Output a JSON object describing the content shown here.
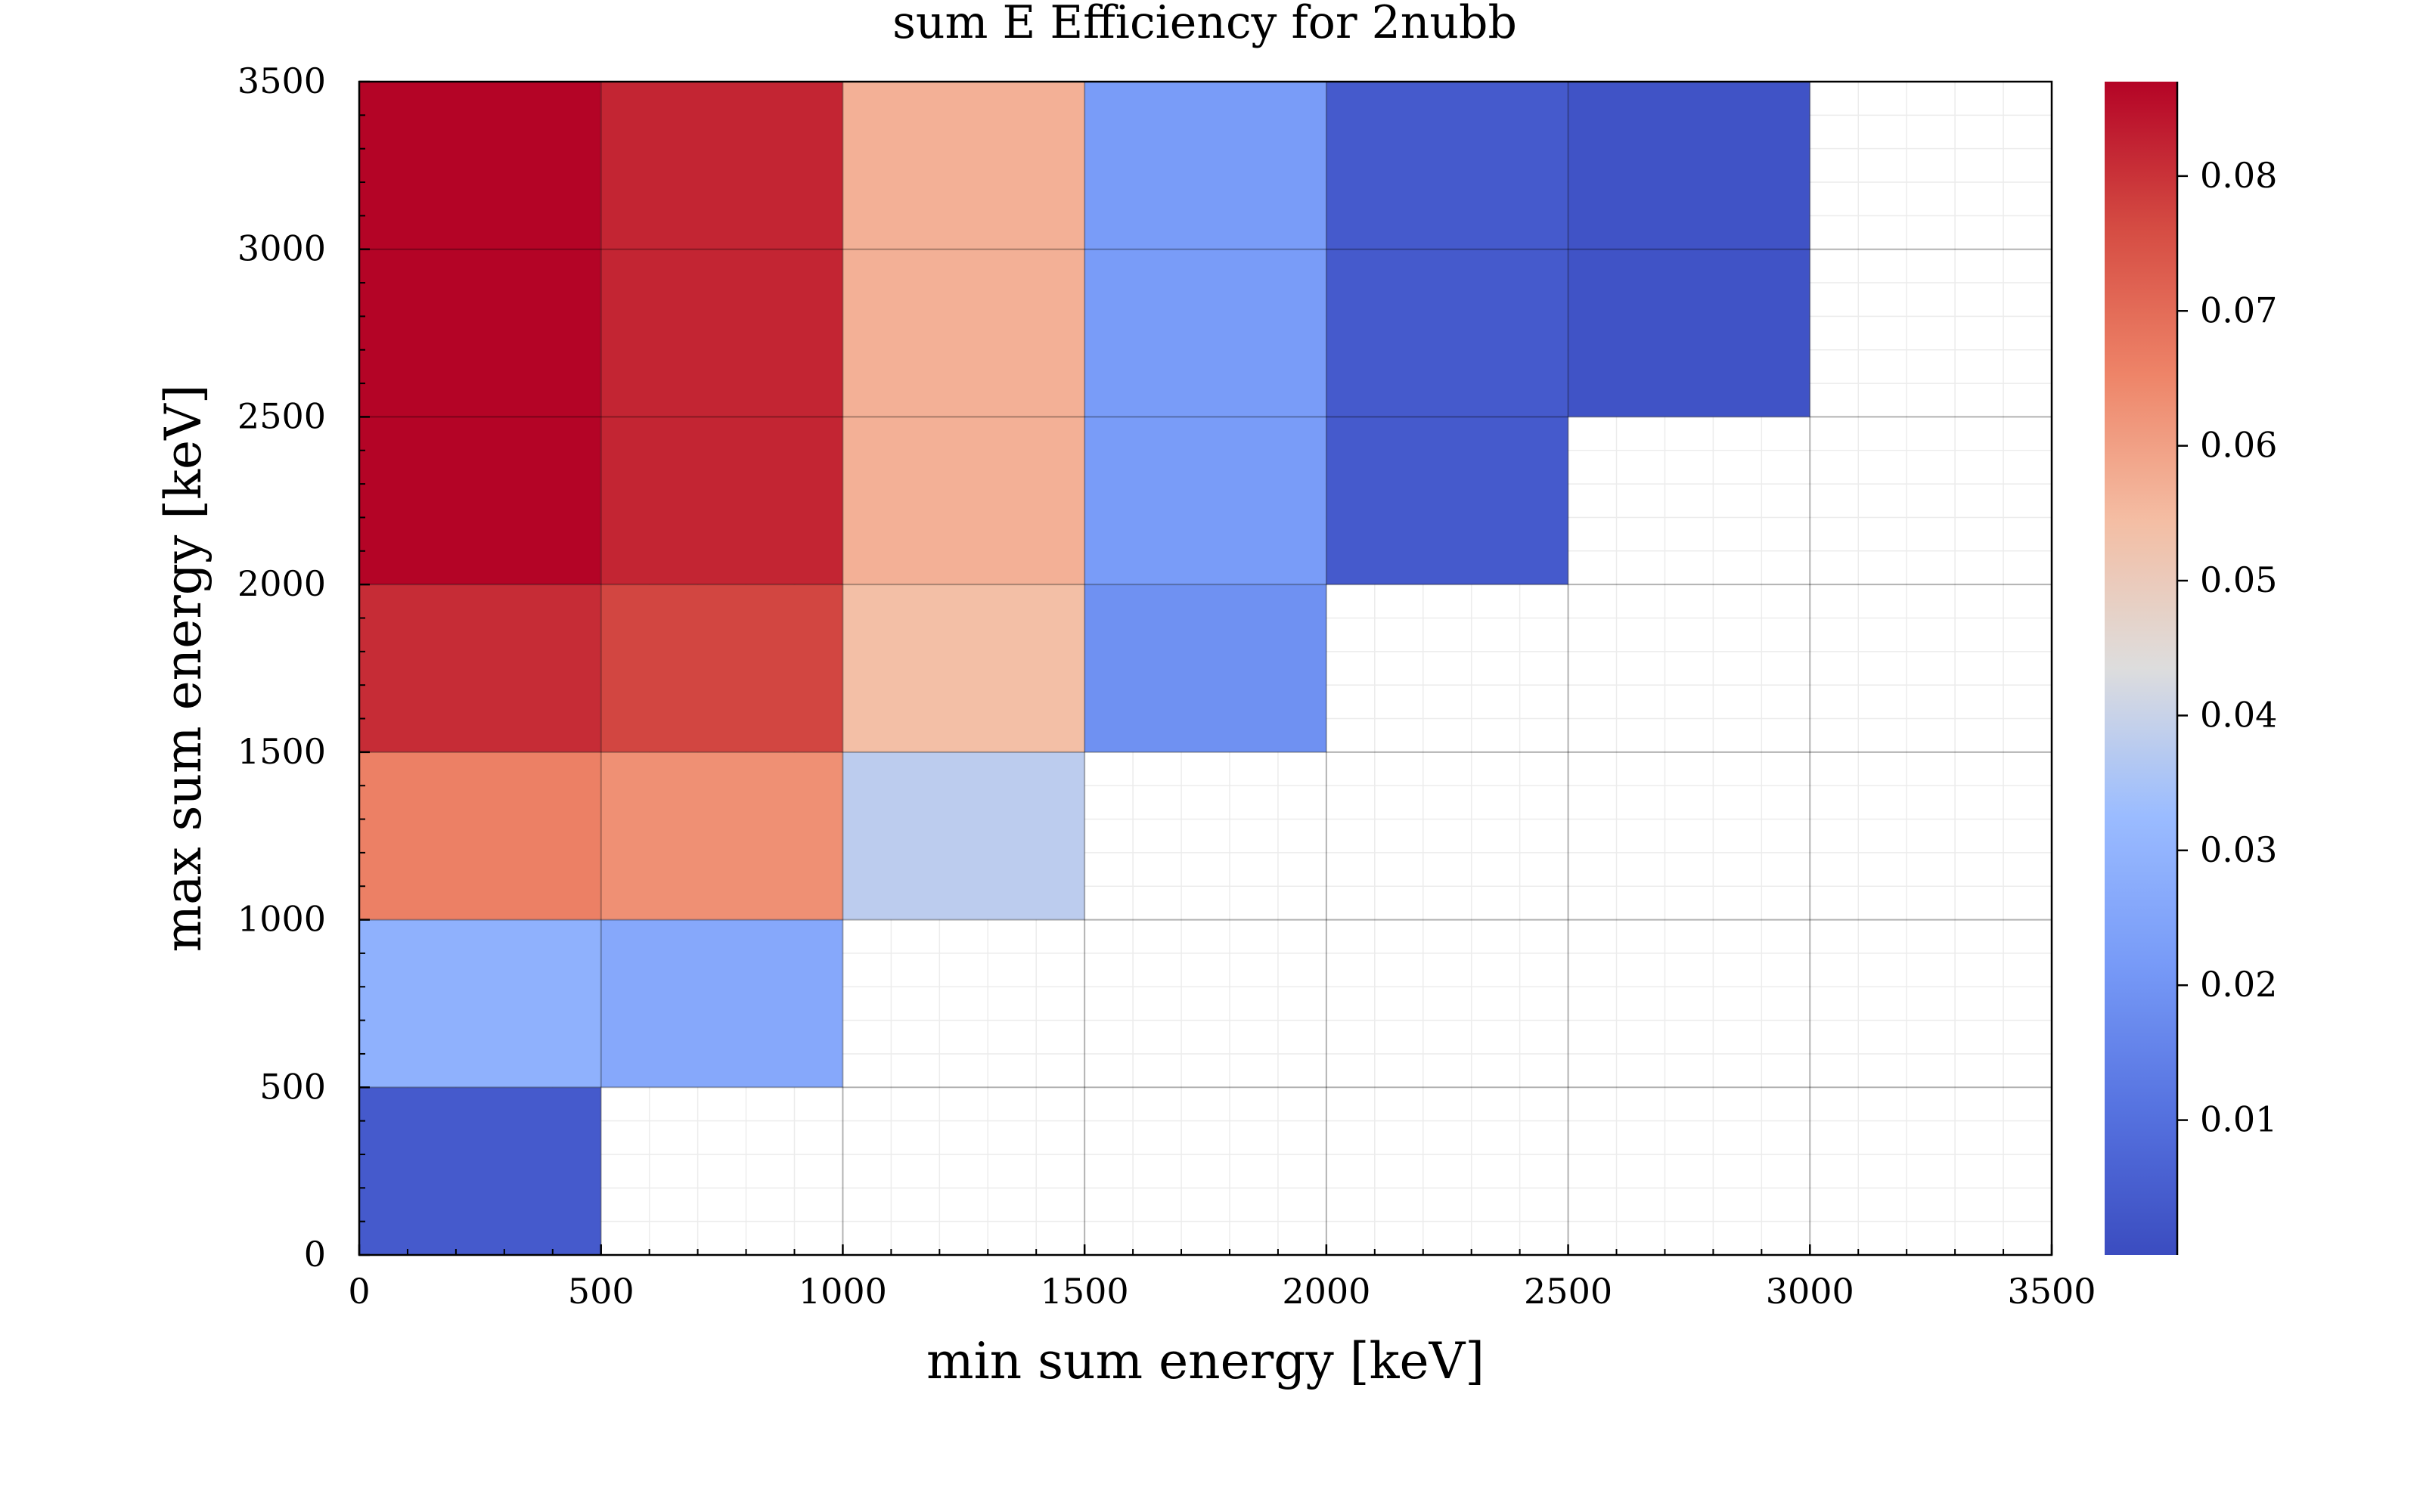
{
  "chart_data": {
    "type": "heatmap",
    "title": "sum E Efficiency for 2nubb",
    "xlabel": "min sum energy [keV]",
    "ylabel": "max sum energy [keV]",
    "xlim": [
      0,
      3500
    ],
    "ylim": [
      0,
      3500
    ],
    "x_ticks": [
      0,
      500,
      1000,
      1500,
      2000,
      2500,
      3000,
      3500
    ],
    "y_ticks": [
      0,
      500,
      1000,
      1500,
      2000,
      2500,
      3000,
      3500
    ],
    "x_tick_labels": [
      "0",
      "500",
      "1000",
      "1500",
      "2000",
      "2500",
      "3000",
      "3500"
    ],
    "y_tick_labels": [
      "0",
      "500",
      "1000",
      "1500",
      "2000",
      "2500",
      "3000",
      "3500"
    ],
    "colorbar": {
      "colormap": "coolwarm",
      "range": [
        0.0,
        0.087
      ],
      "ticks": [
        0.01,
        0.02,
        0.03,
        0.04,
        0.05,
        0.06,
        0.07,
        0.08
      ],
      "tick_labels": [
        "0.01",
        "0.02",
        "0.03",
        "0.04",
        "0.05",
        "0.06",
        "0.07",
        "0.08"
      ]
    },
    "grid": true,
    "cells": [
      {
        "x0": 0,
        "x1": 500,
        "y0": 0,
        "y1": 500,
        "value": 0.004
      },
      {
        "x0": 0,
        "x1": 500,
        "y0": 500,
        "y1": 1000,
        "value": 0.029
      },
      {
        "x0": 500,
        "x1": 1000,
        "y0": 500,
        "y1": 1000,
        "value": 0.026
      },
      {
        "x0": 0,
        "x1": 500,
        "y0": 1000,
        "y1": 1500,
        "value": 0.066
      },
      {
        "x0": 500,
        "x1": 1000,
        "y0": 1000,
        "y1": 1500,
        "value": 0.063
      },
      {
        "x0": 1000,
        "x1": 1500,
        "y0": 1000,
        "y1": 1500,
        "value": 0.038
      },
      {
        "x0": 0,
        "x1": 500,
        "y0": 1500,
        "y1": 2000,
        "value": 0.081
      },
      {
        "x0": 500,
        "x1": 1000,
        "y0": 1500,
        "y1": 2000,
        "value": 0.077
      },
      {
        "x0": 1000,
        "x1": 1500,
        "y0": 1500,
        "y1": 2000,
        "value": 0.054
      },
      {
        "x0": 1500,
        "x1": 2000,
        "y0": 1500,
        "y1": 2000,
        "value": 0.019
      },
      {
        "x0": 0,
        "x1": 500,
        "y0": 2000,
        "y1": 3500,
        "value": 0.087
      },
      {
        "x0": 500,
        "x1": 1000,
        "y0": 2000,
        "y1": 3500,
        "value": 0.082
      },
      {
        "x0": 1000,
        "x1": 1500,
        "y0": 2000,
        "y1": 3500,
        "value": 0.057
      },
      {
        "x0": 1500,
        "x1": 2000,
        "y0": 2000,
        "y1": 3500,
        "value": 0.022
      },
      {
        "x0": 2000,
        "x1": 2500,
        "y0": 2000,
        "y1": 3500,
        "value": 0.004
      },
      {
        "x0": 2500,
        "x1": 3000,
        "y0": 2500,
        "y1": 3500,
        "value": 0.002
      }
    ]
  }
}
